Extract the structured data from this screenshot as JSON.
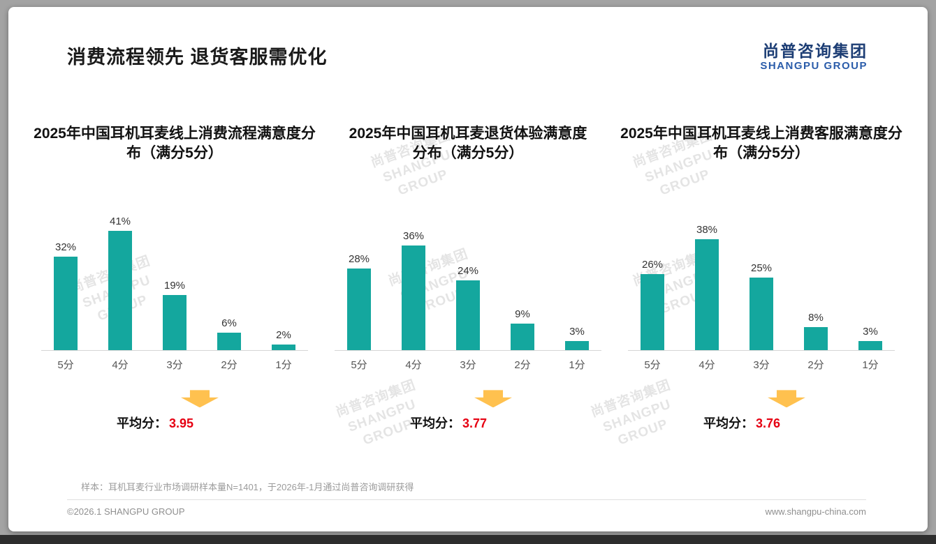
{
  "page": {
    "title": "消费流程领先 退货客服需优化",
    "watermark": "尚普咨询集团\nSHANGPU GROUP",
    "footnote": "样本：耳机耳麦行业市场调研样本量N=1401，于2026年-1月通过尚普咨询调研获得",
    "footer": {
      "left": "©2026.1 SHANGPU GROUP",
      "right": "www.shangpu-china.com"
    }
  },
  "logo": {
    "cn": "尚普咨询集团",
    "en": "SHANGPU GROUP"
  },
  "colors": {
    "bar": "#14a79e",
    "average": "#e60012",
    "arrow": "#ffc14f",
    "logo_cn": "#1c3d74",
    "logo_en": "#2a5caa"
  },
  "average_label": "平均分：",
  "chart_data": [
    {
      "type": "bar",
      "title": "2025年中国耳机耳麦线上消费流程满意度分布（满分5分）",
      "categories": [
        "5分",
        "4分",
        "3分",
        "2分",
        "1分"
      ],
      "values": [
        32,
        41,
        19,
        6,
        2
      ],
      "unit": "%",
      "ylim": [
        0,
        45
      ],
      "grid": false,
      "average": "3.95"
    },
    {
      "type": "bar",
      "title": "2025年中国耳机耳麦退货体验满意度分布（满分5分）",
      "categories": [
        "5分",
        "4分",
        "3分",
        "2分",
        "1分"
      ],
      "values": [
        28,
        36,
        24,
        9,
        3
      ],
      "unit": "%",
      "ylim": [
        0,
        45
      ],
      "grid": false,
      "average": "3.77"
    },
    {
      "type": "bar",
      "title": "2025年中国耳机耳麦线上消费客服满意度分布（满分5分）",
      "categories": [
        "5分",
        "4分",
        "3分",
        "2分",
        "1分"
      ],
      "values": [
        26,
        38,
        25,
        8,
        3
      ],
      "unit": "%",
      "ylim": [
        0,
        45
      ],
      "grid": false,
      "average": "3.76"
    }
  ]
}
